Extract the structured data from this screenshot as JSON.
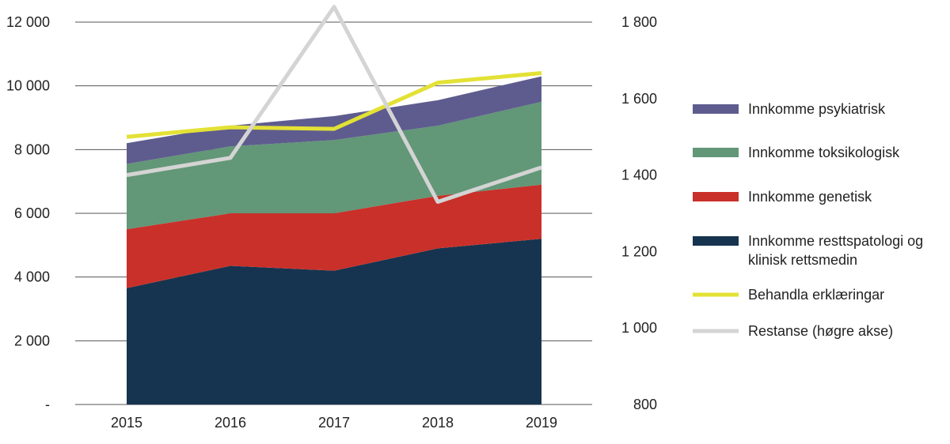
{
  "chart_data": {
    "type": "area",
    "categories": [
      "2015",
      "2016",
      "2017",
      "2018",
      "2019"
    ],
    "left_axis": {
      "ylim": [
        0,
        12000
      ],
      "ticks": [
        0,
        2000,
        4000,
        6000,
        8000,
        10000,
        12000
      ],
      "tick_labels": [
        "-",
        "2 000",
        "4 000",
        "6 000",
        "8 000",
        "10 000",
        "12 000"
      ]
    },
    "right_axis": {
      "ylim": [
        800,
        1800
      ],
      "ticks": [
        800,
        1000,
        1200,
        1400,
        1600,
        1800
      ],
      "tick_labels": [
        "800",
        "1 000",
        "1 200",
        "1 400",
        "1 600",
        "1 800"
      ]
    },
    "grid": true,
    "legend_position": "right",
    "stacked_areas": [
      {
        "name": "Innkomme resttspatologi og klinisk rettsmedin",
        "color": "#16344f",
        "values": [
          3650,
          4350,
          4200,
          4900,
          5200
        ]
      },
      {
        "name": "Innkomme genetisk",
        "color": "#c9302a",
        "values": [
          1850,
          1650,
          1800,
          1650,
          1700
        ]
      },
      {
        "name": "Innkomme toksikologisk",
        "color": "#629777",
        "values": [
          2050,
          2100,
          2300,
          2200,
          2600
        ]
      },
      {
        "name": "Innkomme psykiatrisk",
        "color": "#5e5c8e",
        "values": [
          650,
          650,
          750,
          800,
          800
        ]
      }
    ],
    "lines": [
      {
        "name": "Behandla erklæringar",
        "axis": "left",
        "color": "#e3e135",
        "values": [
          8400,
          8700,
          8650,
          10100,
          10400
        ]
      },
      {
        "name": "Restanse (høgre akse)",
        "axis": "right",
        "color": "#d4d4d4",
        "values": [
          1400,
          1445,
          1840,
          1330,
          1420
        ]
      }
    ]
  },
  "legend": [
    {
      "lines": [
        "Innkomme psykiatrisk"
      ],
      "kind": "swatch",
      "color": "#5e5c8e"
    },
    {
      "lines": [
        "Innkomme toksikologisk"
      ],
      "kind": "swatch",
      "color": "#629777"
    },
    {
      "lines": [
        "Innkomme genetisk"
      ],
      "kind": "swatch",
      "color": "#c9302a"
    },
    {
      "lines": [
        "Innkomme resttspatologi og",
        "klinisk rettsmedin"
      ],
      "kind": "swatch",
      "color": "#16344f"
    },
    {
      "lines": [
        "Behandla erklæringar"
      ],
      "kind": "line",
      "color": "#e3e135"
    },
    {
      "lines": [
        "Restanse (høgre akse)"
      ],
      "kind": "line",
      "color": "#d4d4d4"
    }
  ]
}
